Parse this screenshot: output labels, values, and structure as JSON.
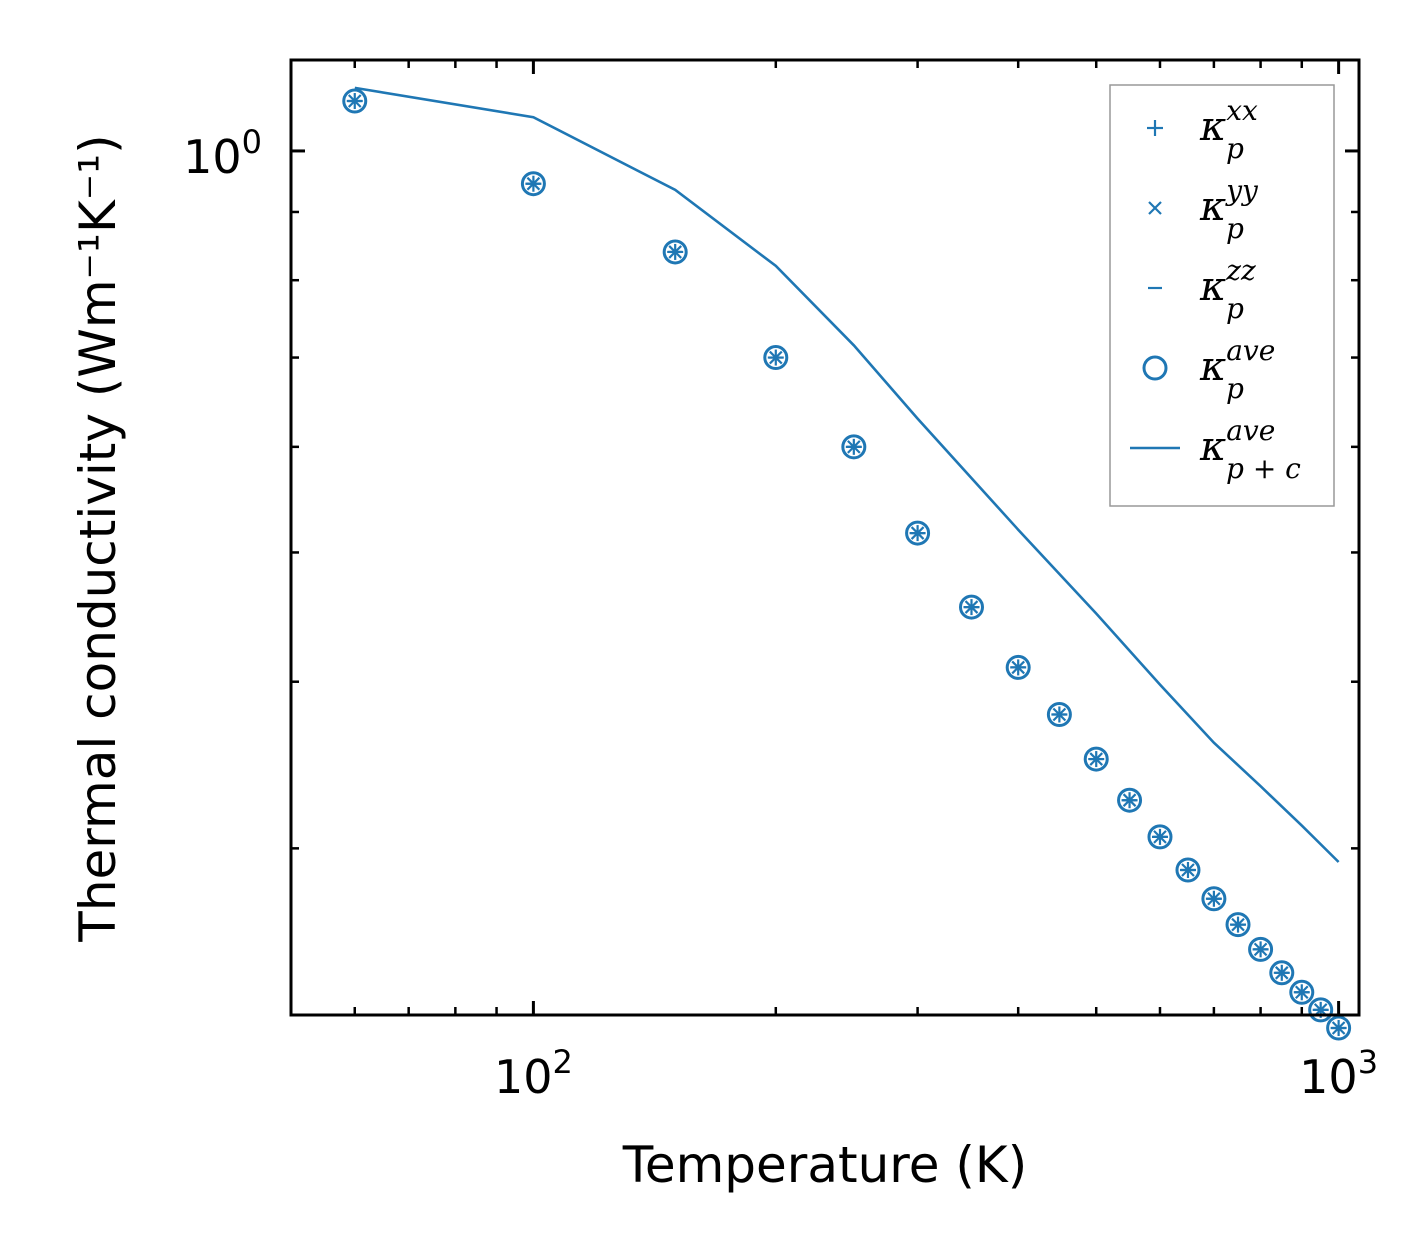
{
  "chart_data": {
    "type": "scatter",
    "title": "",
    "xlabel": "Temperature (K)",
    "ylabel": "Thermal conductivity (Wm⁻¹K⁻¹)",
    "xscale": "log",
    "yscale": "log",
    "xlim": [
      50,
      1060
    ],
    "ylim": [
      0.225,
      1.17
    ],
    "grid": false,
    "legend_position": "top-right",
    "x_tick_labels": [
      {
        "value": 100,
        "base": "10",
        "exp": "2"
      },
      {
        "value": 1000,
        "base": "10",
        "exp": "3"
      }
    ],
    "y_tick_labels": [
      {
        "value": 1.0,
        "base": "10",
        "exp": "0"
      }
    ],
    "x": [
      60,
      100,
      150,
      200,
      250,
      300,
      350,
      400,
      450,
      500,
      550,
      600,
      650,
      700,
      750,
      800,
      850,
      900,
      950,
      1000
    ],
    "series": [
      {
        "name": "kappa_p^xx",
        "legend_label": {
          "base": "κ",
          "sup": "xx",
          "sub": "p"
        },
        "marker": "+",
        "values": [
          1.09,
          0.945,
          0.84,
          0.7,
          0.6,
          0.517,
          0.455,
          0.41,
          0.378,
          0.35,
          0.326,
          0.306,
          0.289,
          0.275,
          0.263,
          0.252,
          0.242,
          0.234,
          0.227,
          0.22
        ]
      },
      {
        "name": "kappa_p^yy",
        "legend_label": {
          "base": "κ",
          "sup": "yy",
          "sub": "p"
        },
        "marker": "x",
        "values": [
          1.09,
          0.945,
          0.84,
          0.7,
          0.6,
          0.517,
          0.455,
          0.41,
          0.378,
          0.35,
          0.326,
          0.306,
          0.289,
          0.275,
          0.263,
          0.252,
          0.242,
          0.234,
          0.227,
          0.22
        ]
      },
      {
        "name": "kappa_p^zz",
        "legend_label": {
          "base": "κ",
          "sup": "zz",
          "sub": "p"
        },
        "marker": "_",
        "values": [
          1.09,
          0.945,
          0.84,
          0.7,
          0.6,
          0.517,
          0.455,
          0.41,
          0.378,
          0.35,
          0.326,
          0.306,
          0.289,
          0.275,
          0.263,
          0.252,
          0.242,
          0.234,
          0.227,
          0.22
        ]
      },
      {
        "name": "kappa_p^ave",
        "legend_label": {
          "base": "κ",
          "sup": "ave",
          "sub": "p"
        },
        "marker": "o",
        "values": [
          1.09,
          0.945,
          0.84,
          0.7,
          0.6,
          0.517,
          0.455,
          0.41,
          0.378,
          0.35,
          0.326,
          0.306,
          0.289,
          0.275,
          0.263,
          0.252,
          0.242,
          0.234,
          0.227,
          0.22
        ]
      },
      {
        "name": "kappa_p+c^ave",
        "legend_label": {
          "base": "κ",
          "sup": "ave",
          "sub": "p + c"
        },
        "marker": "line",
        "x": [
          60,
          100,
          150,
          200,
          250,
          300,
          400,
          500,
          600,
          700,
          800,
          900,
          1000
        ],
        "values": [
          1.115,
          1.06,
          0.935,
          0.82,
          0.715,
          0.63,
          0.52,
          0.45,
          0.398,
          0.36,
          0.334,
          0.312,
          0.293
        ]
      }
    ],
    "colors": {
      "series": "#1f77b4",
      "axes": "#000000",
      "legend_border": "#999999"
    }
  }
}
